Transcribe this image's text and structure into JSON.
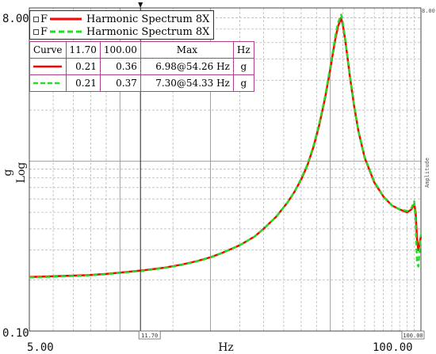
{
  "chart_data": {
    "type": "line",
    "xscale": "log",
    "yscale": "log",
    "xlim": [
      5.0,
      100.0
    ],
    "ylim": [
      0.1,
      8.0
    ],
    "x_tick_labels": [
      "5.00",
      "100.00"
    ],
    "y_tick_labels": [
      "8.00",
      "0.10"
    ],
    "xlabel": "Hz",
    "ylabel": "g",
    "yscale_label": "Log",
    "right_axis_label": "Amplitude",
    "right_top_value": "8.00",
    "cursor_labels": [
      "11.70",
      "100.00"
    ],
    "grid": true,
    "legend": [
      {
        "prefix": "F",
        "name": "Harmonic Spectrum 8X",
        "color": "#ff0000",
        "style": "solid"
      },
      {
        "prefix": "F",
        "name": "Harmonic Spectrum 8X",
        "color": "#22dd22",
        "style": "dashed"
      }
    ],
    "table": {
      "headers": [
        "Curve",
        "11.70",
        "100.00",
        "Max",
        "Hz"
      ],
      "rows": [
        {
          "v1": "0.21",
          "v2": "0.36",
          "max": "6.98@54.26 Hz",
          "unit": "g"
        },
        {
          "v1": "0.21",
          "v2": "0.37",
          "max": "7.30@54.33 Hz",
          "unit": "g"
        }
      ]
    },
    "series": [
      {
        "name": "Harmonic Spectrum 8X",
        "color": "#ff0000",
        "x": [
          5.0,
          6.0,
          7.0,
          8.0,
          9.0,
          10.0,
          12.0,
          14.0,
          16.0,
          18.0,
          20.0,
          22.0,
          25.0,
          28.0,
          30.0,
          33.0,
          36.0,
          38.0,
          40.0,
          42.0,
          44.0,
          46.0,
          48.0,
          50.0,
          51.0,
          52.0,
          53.0,
          54.26,
          55.0,
          56.0,
          57.0,
          58.0,
          60.0,
          62.0,
          65.0,
          70.0,
          75.0,
          80.0,
          85.0,
          90.0,
          93.0,
          95.0,
          96.0,
          97.0,
          98.0,
          100.0
        ],
        "y": [
          0.208,
          0.21,
          0.212,
          0.214,
          0.217,
          0.221,
          0.228,
          0.236,
          0.246,
          0.258,
          0.272,
          0.29,
          0.32,
          0.36,
          0.4,
          0.47,
          0.57,
          0.66,
          0.78,
          0.95,
          1.22,
          1.65,
          2.35,
          3.5,
          4.35,
          5.3,
          6.2,
          6.98,
          6.4,
          5.2,
          4.1,
          3.2,
          2.1,
          1.5,
          1.05,
          0.75,
          0.62,
          0.55,
          0.52,
          0.5,
          0.52,
          0.56,
          0.5,
          0.35,
          0.3,
          0.36
        ]
      },
      {
        "name": "Harmonic Spectrum 8X",
        "color": "#22dd22",
        "x": [
          5.0,
          6.0,
          7.0,
          8.0,
          9.0,
          10.0,
          12.0,
          14.0,
          16.0,
          18.0,
          20.0,
          22.0,
          25.0,
          28.0,
          30.0,
          33.0,
          36.0,
          38.0,
          40.0,
          42.0,
          44.0,
          46.0,
          48.0,
          50.0,
          51.0,
          52.0,
          53.0,
          54.33,
          55.0,
          56.0,
          57.0,
          58.0,
          60.0,
          62.0,
          65.0,
          70.0,
          75.0,
          80.0,
          85.0,
          90.0,
          93.0,
          95.0,
          96.0,
          97.0,
          98.0,
          100.0
        ],
        "y": [
          0.207,
          0.209,
          0.211,
          0.213,
          0.216,
          0.22,
          0.227,
          0.235,
          0.245,
          0.257,
          0.271,
          0.29,
          0.32,
          0.36,
          0.4,
          0.47,
          0.57,
          0.66,
          0.79,
          0.96,
          1.24,
          1.68,
          2.4,
          3.6,
          4.5,
          5.5,
          6.5,
          7.3,
          6.6,
          5.3,
          4.15,
          3.25,
          2.12,
          1.51,
          1.06,
          0.76,
          0.62,
          0.55,
          0.52,
          0.51,
          0.53,
          0.58,
          0.45,
          0.26,
          0.24,
          0.37
        ]
      }
    ]
  }
}
